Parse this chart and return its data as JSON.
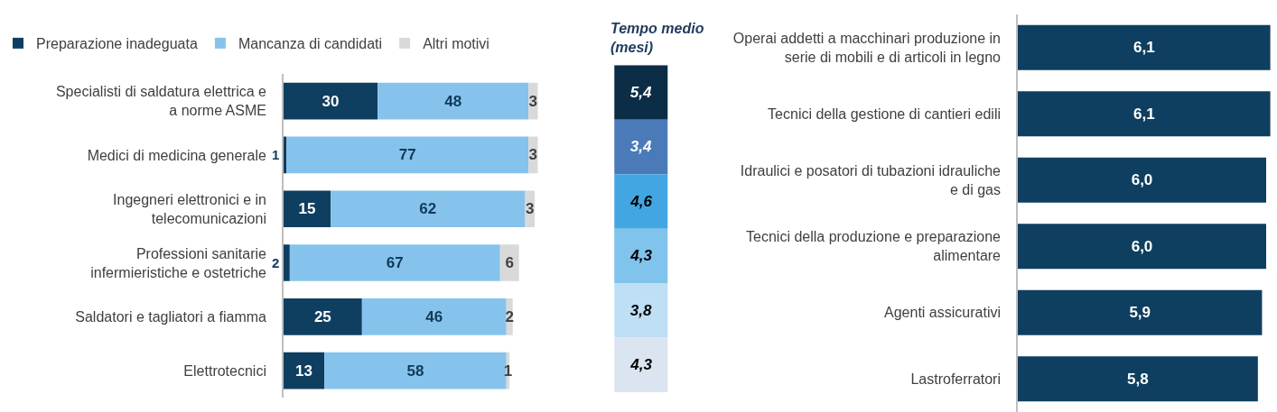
{
  "chart_data": [
    {
      "type": "bar",
      "orientation": "horizontal",
      "stacked": true,
      "legend": "top",
      "data_labels": true,
      "categories": [
        "Specialisti di saldatura elettrica e a norme ASME",
        "Medici di medicina generale",
        "Ingegneri elettronici e in telecomunicazioni",
        "Professioni sanitarie infermieristiche e ostetriche",
        "Saldatori e tagliatori a fiamma",
        "Elettrotecnici"
      ],
      "series": [
        {
          "name": "Preparazione inadeguata",
          "color": "#0f3f60",
          "values": [
            30,
            1,
            15,
            2,
            25,
            13
          ]
        },
        {
          "name": "Mancanza di candidati",
          "color": "#85c3ec",
          "values": [
            48,
            77,
            62,
            67,
            46,
            58
          ]
        },
        {
          "name": "Altri motivi",
          "color": "#d9d9d9",
          "values": [
            3,
            3,
            3,
            6,
            2,
            1
          ]
        }
      ]
    },
    {
      "type": "heatmap",
      "title": "Tempo medio (mesi)",
      "categories": [
        null
      ],
      "y_categories": [
        null,
        null,
        null,
        null,
        null,
        null
      ],
      "cells": [
        [
          5.4
        ],
        [
          3.4
        ],
        [
          4.6
        ],
        [
          4.3
        ],
        [
          3.8
        ],
        [
          4.3
        ]
      ],
      "cell_labels": [
        [
          "5,4"
        ],
        [
          "3,4"
        ],
        [
          "4,6"
        ],
        [
          "4,3"
        ],
        [
          "3,8"
        ],
        [
          "4,3"
        ]
      ],
      "colors": [
        "#0b2d45",
        "#4a7bb8",
        "#42a6e2",
        "#80c3ec",
        "#bfdff4",
        "#dbe5f1"
      ]
    },
    {
      "type": "bar",
      "orientation": "horizontal",
      "xlim": [
        0,
        6.2
      ],
      "categories": [
        "Operai addetti a macchinari produzione in serie di mobili e di articoli in legno",
        "Tecnici della gestione di cantieri edili",
        "Idraulici e posatori di tubazioni idrauliche e di gas",
        "Tecnici della produzione e preparazione alimentare",
        "Agenti assicurativi",
        "Lastroferratori"
      ],
      "series": [
        {
          "color": "#0f3f60",
          "values": [
            6.1,
            6.1,
            6.0,
            6.0,
            5.9,
            5.8
          ],
          "value_labels": [
            "6,1",
            "6,1",
            "6,0",
            "6,0",
            "5,9",
            "5,8"
          ]
        }
      ]
    }
  ]
}
